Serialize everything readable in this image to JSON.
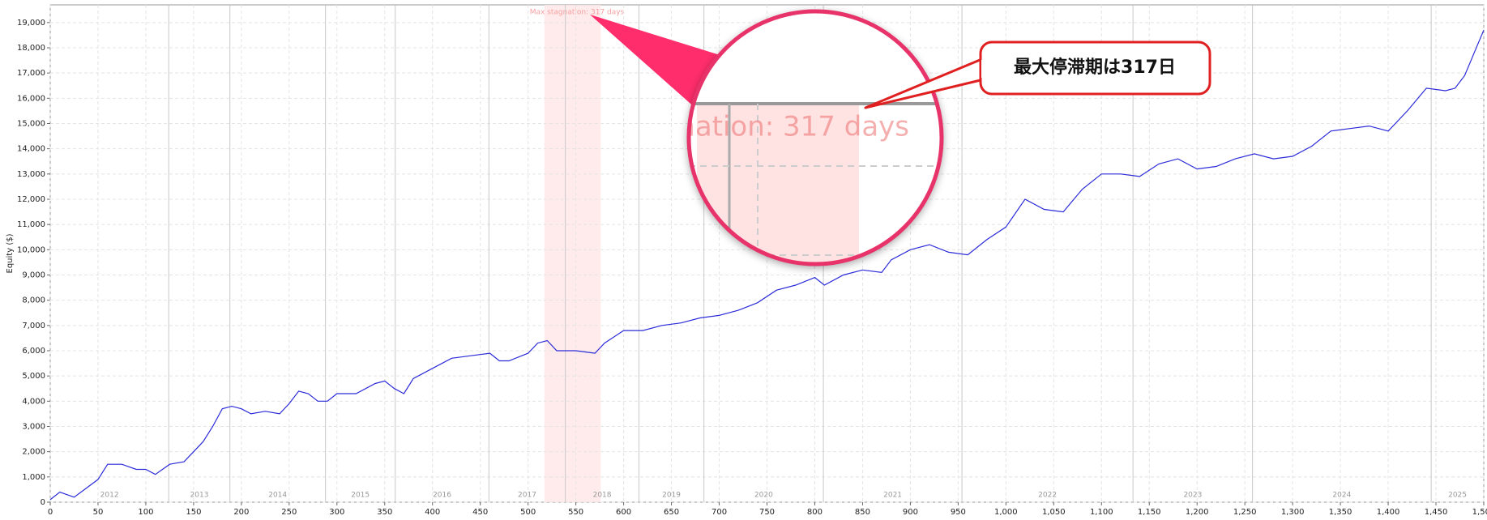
{
  "chart_data": {
    "type": "line",
    "y_label": "Equity ($)",
    "xlim": [
      0,
      1500
    ],
    "xticks": [
      0,
      50,
      100,
      150,
      200,
      250,
      300,
      350,
      400,
      450,
      500,
      550,
      600,
      650,
      700,
      750,
      800,
      850,
      900,
      950,
      {
        "value": 1000,
        "label": "1,000"
      },
      {
        "value": 1050,
        "label": "1,050"
      },
      {
        "value": 1100,
        "label": "1,100"
      },
      {
        "value": 1150,
        "label": "1,150"
      },
      {
        "value": 1200,
        "label": "1,200"
      },
      {
        "value": 1250,
        "label": "1,250"
      },
      {
        "value": 1300,
        "label": "1,300"
      },
      {
        "value": 1350,
        "label": "1,350"
      },
      {
        "value": 1400,
        "label": "1,400"
      },
      {
        "value": 1450,
        "label": "1,450"
      },
      {
        "value": 1500,
        "label": "1,500"
      }
    ],
    "ylim": [
      0,
      19700
    ],
    "yticks": [
      0,
      {
        "value": 1000,
        "label": "1,000"
      },
      {
        "value": 2000,
        "label": "2,000"
      },
      {
        "value": 3000,
        "label": "3,000"
      },
      {
        "value": 4000,
        "label": "4,000"
      },
      {
        "value": 5000,
        "label": "5,000"
      },
      {
        "value": 6000,
        "label": "6,000"
      },
      {
        "value": 7000,
        "label": "7,000"
      },
      {
        "value": 8000,
        "label": "8,000"
      },
      {
        "value": 9000,
        "label": "9,000"
      },
      {
        "value": 10000,
        "label": "10,000"
      },
      {
        "value": 11000,
        "label": "11,000"
      },
      {
        "value": 12000,
        "label": "12,000"
      },
      {
        "value": 13000,
        "label": "13,000"
      },
      {
        "value": 14000,
        "label": "14,000"
      },
      {
        "value": 15000,
        "label": "15,000"
      },
      {
        "value": 16000,
        "label": "16,000"
      },
      {
        "value": 17000,
        "label": "17,000"
      },
      {
        "value": 18000,
        "label": "18,000"
      },
      {
        "value": 19000,
        "label": "19,000"
      }
    ],
    "grid": true,
    "years": [
      "2012",
      "2013",
      "2014",
      "2015",
      "2016",
      "2017",
      "2018",
      "2019",
      "2020",
      "2021",
      "2022",
      "2023",
      "2024",
      "2025"
    ],
    "year_boundaries": [
      124,
      188,
      288,
      361,
      459,
      539,
      616,
      684,
      809,
      954,
      1133,
      1258,
      1445
    ],
    "stagnation": {
      "label": "Max stagnation: 317 days",
      "start": 517,
      "end": 576
    },
    "callout": "最大停滞期は317日",
    "series": [
      {
        "color": "#2b2bd9",
        "x": [
          0,
          10,
          25,
          50,
          60,
          75,
          90,
          100,
          110,
          125,
          140,
          150,
          160,
          170,
          180,
          190,
          200,
          210,
          225,
          240,
          250,
          260,
          270,
          280,
          290,
          300,
          320,
          340,
          350,
          360,
          370,
          380,
          400,
          420,
          440,
          460,
          470,
          480,
          500,
          510,
          520,
          530,
          550,
          570,
          580,
          600,
          620,
          640,
          660,
          680,
          700,
          720,
          740,
          760,
          780,
          800,
          810,
          830,
          850,
          870,
          880,
          900,
          920,
          940,
          960,
          980,
          1000,
          1020,
          1040,
          1060,
          1080,
          1100,
          1120,
          1140,
          1160,
          1180,
          1200,
          1220,
          1240,
          1260,
          1280,
          1300,
          1320,
          1340,
          1360,
          1380,
          1400,
          1420,
          1440,
          1460,
          1470,
          1480,
          1490,
          1500
        ],
        "values": [
          100,
          400,
          200,
          900,
          1500,
          1500,
          1300,
          1300,
          1100,
          1500,
          1600,
          2000,
          2400,
          3000,
          3700,
          3800,
          3700,
          3500,
          3600,
          3500,
          3900,
          4400,
          4300,
          4000,
          4000,
          4300,
          4300,
          4700,
          4800,
          4500,
          4300,
          4900,
          5300,
          5700,
          5800,
          5900,
          5600,
          5600,
          5900,
          6300,
          6400,
          6000,
          6000,
          5900,
          6300,
          6800,
          6800,
          7000,
          7100,
          7300,
          7400,
          7600,
          7900,
          8400,
          8600,
          8900,
          8600,
          9000,
          9200,
          9100,
          9600,
          10000,
          10200,
          9900,
          9800,
          10400,
          10900,
          12000,
          11600,
          11500,
          12400,
          13000,
          13000,
          12900,
          13400,
          13600,
          13200,
          13300,
          13600,
          13800,
          13600,
          13700,
          14100,
          14700,
          14800,
          14900,
          14700,
          15500,
          16400,
          16300,
          16400,
          16900,
          17800,
          18700
        ]
      }
    ]
  }
}
